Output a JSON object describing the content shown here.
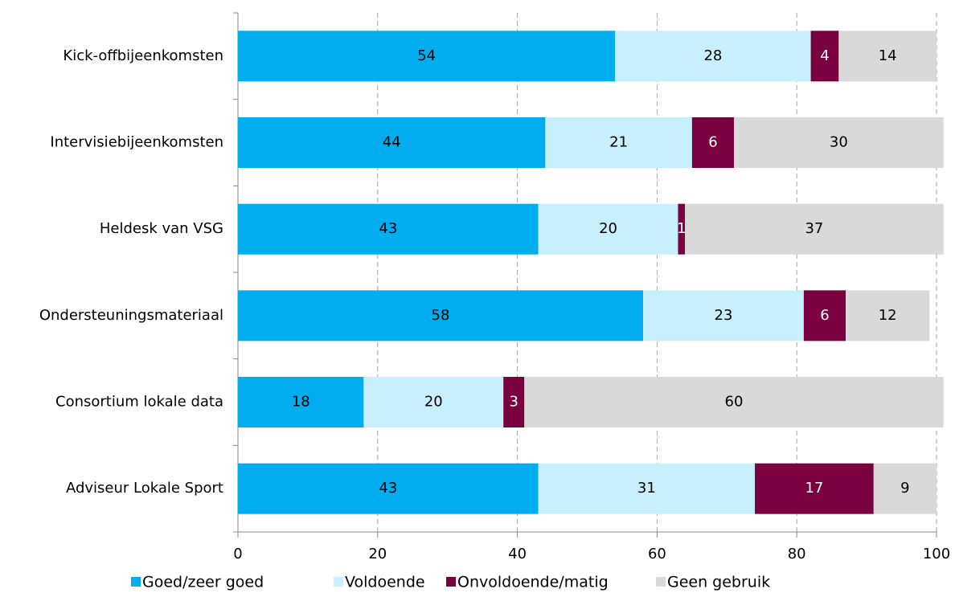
{
  "chart_data": {
    "type": "stacked_bar_horizontal",
    "categories": [
      "Kick-offbijeenkomsten",
      "Intervisiebijeenkomsten",
      "Heldesk van VSG",
      "Ondersteuningsmateriaal",
      "Consortium lokale data",
      "Adviseur Lokale Sport"
    ],
    "series": [
      {
        "name": "Goed/zeer goed",
        "color": "#00aeef",
        "values": [
          54,
          44,
          43,
          58,
          18,
          43
        ]
      },
      {
        "name": "Voldoende",
        "color": "#c8effc",
        "values": [
          28,
          21,
          20,
          23,
          20,
          31
        ]
      },
      {
        "name": "Onvoldoende/matig",
        "color": "#7a0040",
        "values": [
          4,
          6,
          1,
          6,
          3,
          17
        ]
      },
      {
        "name": "Geen gebruik",
        "color": "#d9d9d9",
        "values": [
          14,
          30,
          37,
          12,
          60,
          9
        ]
      }
    ],
    "xlim": [
      0,
      100
    ],
    "xticks": [
      0,
      20,
      40,
      60,
      80,
      100
    ],
    "grid": true,
    "legend": "bottom"
  }
}
